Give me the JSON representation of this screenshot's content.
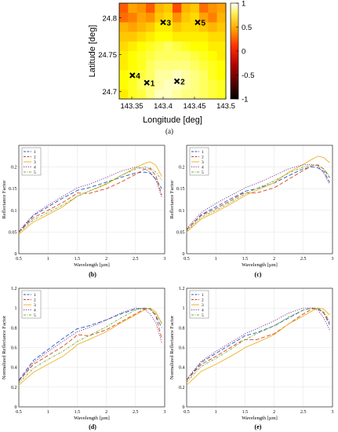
{
  "colors": {
    "series": [
      "#1f5fbf",
      "#d2461e",
      "#ecb22a",
      "#7e2f8e",
      "#77ac30"
    ],
    "heatmap_low": "#000000",
    "heatmap_mid": "#ff2a00",
    "heatmap_high": "#ffffff",
    "marker": "#000000"
  },
  "chart_data": [
    {
      "type": "heatmap",
      "panel_label": "(a)",
      "title": "",
      "xlabel": "Longitude [deg]",
      "ylabel": "Latitude [deg]",
      "xlim": [
        143.33,
        143.5
      ],
      "ylim": [
        24.69,
        24.82
      ],
      "xticks": [
        "143.35",
        "143.4",
        "143.45",
        "143.5"
      ],
      "yticks": [
        "24.7",
        "24.75",
        "24.8"
      ],
      "colorbar": {
        "range": [
          -1,
          1
        ],
        "ticks": [
          "1",
          "0.5",
          "0",
          "-0.5",
          "-1"
        ],
        "colormap": "hot"
      },
      "grid": false,
      "points": [
        {
          "label": "1",
          "lon": 143.374,
          "lat": 24.712
        },
        {
          "label": "2",
          "lon": 143.422,
          "lat": 24.714
        },
        {
          "label": "3",
          "lon": 143.4,
          "lat": 24.794
        },
        {
          "label": "4",
          "lon": 143.351,
          "lat": 24.722
        },
        {
          "label": "5",
          "lon": 143.455,
          "lat": 24.794
        }
      ],
      "values_grid_description": "",
      "values": [
        [
          0.15,
          0.35,
          0.3,
          0.15,
          0.4,
          0.45,
          0.1,
          0.4,
          0.45,
          0.2,
          0.3,
          0.35
        ],
        [
          0.2,
          0.25,
          0.35,
          0.3,
          0.45,
          0.5,
          0.3,
          0.45,
          0.5,
          0.35,
          0.25,
          0.4
        ],
        [
          0.4,
          0.35,
          0.4,
          0.45,
          0.55,
          0.55,
          0.45,
          0.5,
          0.5,
          0.45,
          0.4,
          0.45
        ],
        [
          0.45,
          0.45,
          0.5,
          0.55,
          0.6,
          0.6,
          0.55,
          0.55,
          0.55,
          0.55,
          0.5,
          0.5
        ],
        [
          0.5,
          0.55,
          0.6,
          0.65,
          0.7,
          0.75,
          0.7,
          0.65,
          0.6,
          0.6,
          0.55,
          0.55
        ],
        [
          0.55,
          0.6,
          0.65,
          0.7,
          0.75,
          0.75,
          0.75,
          0.75,
          0.7,
          0.65,
          0.6,
          0.55
        ],
        [
          0.55,
          0.6,
          0.65,
          0.75,
          0.8,
          0.8,
          0.8,
          0.8,
          0.75,
          0.7,
          0.65,
          0.6
        ],
        [
          0.6,
          0.65,
          0.7,
          0.75,
          0.85,
          0.85,
          0.9,
          0.85,
          0.8,
          0.75,
          0.65,
          0.6
        ],
        [
          0.6,
          0.65,
          0.75,
          0.8,
          0.85,
          0.9,
          0.9,
          0.85,
          0.8,
          0.75,
          0.7,
          0.65
        ],
        [
          0.55,
          0.65,
          0.7,
          0.8,
          0.9,
          0.9,
          0.85,
          0.8,
          0.8,
          0.75,
          0.7,
          0.65
        ]
      ]
    },
    {
      "type": "line",
      "panel_label": "(b)",
      "xlabel": "Wavelength [µm]",
      "ylabel": "Reflectance Factor",
      "xlim": [
        0.5,
        3.0
      ],
      "ylim": [
        0,
        0.25
      ],
      "xticks": [
        "0.5",
        "1",
        "1.5",
        "2",
        "2.5",
        "3"
      ],
      "yticks": [
        "0",
        "0.05",
        "0.1",
        "0.15",
        "0.2"
      ],
      "grid": true,
      "legend": "top-left",
      "x": [
        0.5,
        0.75,
        1.0,
        1.25,
        1.45,
        1.5,
        1.7,
        2.0,
        2.25,
        2.5,
        2.65,
        2.75,
        2.85,
        2.95
      ],
      "series": [
        {
          "name": "1",
          "values": [
            0.05,
            0.088,
            0.108,
            0.128,
            0.142,
            0.146,
            0.152,
            0.165,
            0.176,
            0.186,
            0.188,
            0.186,
            0.172,
            0.15
          ]
        },
        {
          "name": "2",
          "values": [
            0.05,
            0.083,
            0.1,
            0.118,
            0.135,
            0.14,
            0.139,
            0.15,
            0.165,
            0.183,
            0.195,
            0.196,
            0.18,
            0.135
          ]
        },
        {
          "name": "3",
          "values": [
            0.045,
            0.073,
            0.09,
            0.108,
            0.127,
            0.133,
            0.144,
            0.16,
            0.18,
            0.198,
            0.208,
            0.212,
            0.204,
            0.178
          ]
        },
        {
          "name": "4",
          "values": [
            0.052,
            0.09,
            0.112,
            0.132,
            0.148,
            0.152,
            0.16,
            0.176,
            0.19,
            0.2,
            0.197,
            0.188,
            0.17,
            0.13
          ]
        },
        {
          "name": "5",
          "values": [
            0.048,
            0.078,
            0.095,
            0.112,
            0.128,
            0.132,
            0.144,
            0.162,
            0.18,
            0.195,
            0.2,
            0.198,
            0.188,
            0.17
          ]
        }
      ]
    },
    {
      "type": "line",
      "panel_label": "(c)",
      "xlabel": "Wavelength [µm]",
      "ylabel": "Reflectance Factor",
      "xlim": [
        0.5,
        3.0
      ],
      "ylim": [
        0,
        0.25
      ],
      "xticks": [
        "0.5",
        "1",
        "1.5",
        "2",
        "2.5",
        "3"
      ],
      "yticks": [
        "0",
        "0.05",
        "0.1",
        "0.15",
        "0.2"
      ],
      "grid": true,
      "legend": "top-left",
      "x": [
        0.5,
        0.75,
        1.0,
        1.25,
        1.45,
        1.5,
        1.7,
        2.0,
        2.25,
        2.5,
        2.65,
        2.75,
        2.85,
        2.95
      ],
      "series": [
        {
          "name": "1",
          "values": [
            0.055,
            0.09,
            0.108,
            0.126,
            0.14,
            0.144,
            0.15,
            0.163,
            0.18,
            0.196,
            0.2,
            0.198,
            0.19,
            0.165
          ]
        },
        {
          "name": "2",
          "values": [
            0.055,
            0.088,
            0.104,
            0.122,
            0.138,
            0.14,
            0.14,
            0.152,
            0.172,
            0.192,
            0.203,
            0.205,
            0.195,
            0.175
          ]
        },
        {
          "name": "3",
          "values": [
            0.05,
            0.08,
            0.096,
            0.114,
            0.13,
            0.134,
            0.146,
            0.164,
            0.188,
            0.206,
            0.218,
            0.225,
            0.222,
            0.21
          ]
        },
        {
          "name": "4",
          "values": [
            0.058,
            0.095,
            0.116,
            0.134,
            0.148,
            0.152,
            0.162,
            0.18,
            0.196,
            0.205,
            0.206,
            0.202,
            0.186,
            0.16
          ]
        },
        {
          "name": "5",
          "values": [
            0.052,
            0.084,
            0.1,
            0.118,
            0.134,
            0.138,
            0.15,
            0.168,
            0.186,
            0.2,
            0.204,
            0.203,
            0.196,
            0.178
          ]
        }
      ]
    },
    {
      "type": "line",
      "panel_label": "(d)",
      "xlabel": "Wavelength [µm]",
      "ylabel": "Normalized Reflectance Factor",
      "xlim": [
        0.5,
        3.0
      ],
      "ylim": [
        0,
        1.2
      ],
      "xticks": [
        "0.5",
        "1",
        "1.5",
        "2",
        "2.5",
        "3"
      ],
      "yticks": [
        "0",
        "0.2",
        "0.4",
        "0.6",
        "0.8",
        "1",
        "1.2"
      ],
      "grid": true,
      "legend": "top-left",
      "x": [
        0.5,
        0.75,
        1.0,
        1.25,
        1.45,
        1.5,
        1.7,
        2.0,
        2.25,
        2.5,
        2.65,
        2.75,
        2.85,
        2.95
      ],
      "series": [
        {
          "name": "1",
          "values": [
            0.27,
            0.47,
            0.58,
            0.69,
            0.77,
            0.79,
            0.82,
            0.88,
            0.94,
            0.99,
            1.0,
            0.99,
            0.92,
            0.8
          ]
        },
        {
          "name": "2",
          "values": [
            0.26,
            0.43,
            0.52,
            0.61,
            0.7,
            0.73,
            0.72,
            0.78,
            0.86,
            0.94,
            0.99,
            1.0,
            0.92,
            0.69
          ]
        },
        {
          "name": "3",
          "values": [
            0.22,
            0.35,
            0.43,
            0.51,
            0.6,
            0.63,
            0.68,
            0.76,
            0.85,
            0.93,
            0.98,
            1.0,
            0.96,
            0.84
          ]
        },
        {
          "name": "4",
          "values": [
            0.26,
            0.45,
            0.56,
            0.66,
            0.74,
            0.76,
            0.8,
            0.88,
            0.95,
            1.0,
            0.99,
            0.94,
            0.85,
            0.65
          ]
        },
        {
          "name": "5",
          "values": [
            0.24,
            0.39,
            0.48,
            0.56,
            0.64,
            0.66,
            0.72,
            0.81,
            0.9,
            0.98,
            1.0,
            0.99,
            0.94,
            0.85
          ]
        }
      ]
    },
    {
      "type": "line",
      "panel_label": "(e)",
      "xlabel": "Wavelength [µm]",
      "ylabel": "Normalized Reflectance Factor",
      "xlim": [
        0.5,
        3.0
      ],
      "ylim": [
        0,
        1.2
      ],
      "xticks": [
        "0.5",
        "1",
        "1.5",
        "2",
        "2.5",
        "3"
      ],
      "yticks": [
        "0",
        "0.2",
        "0.4",
        "0.6",
        "0.8",
        "1",
        "1.2"
      ],
      "grid": true,
      "legend": "top-left",
      "x": [
        0.5,
        0.75,
        1.0,
        1.25,
        1.45,
        1.5,
        1.7,
        2.0,
        2.25,
        2.5,
        2.65,
        2.75,
        2.85,
        2.95
      ],
      "series": [
        {
          "name": "1",
          "values": [
            0.27,
            0.45,
            0.54,
            0.63,
            0.7,
            0.72,
            0.75,
            0.82,
            0.9,
            0.98,
            1.0,
            0.99,
            0.95,
            0.83
          ]
        },
        {
          "name": "2",
          "values": [
            0.27,
            0.43,
            0.51,
            0.6,
            0.67,
            0.68,
            0.68,
            0.74,
            0.84,
            0.94,
            0.99,
            1.0,
            0.95,
            0.85
          ]
        },
        {
          "name": "3",
          "values": [
            0.22,
            0.36,
            0.43,
            0.51,
            0.58,
            0.6,
            0.65,
            0.73,
            0.84,
            0.92,
            0.97,
            1.0,
            0.99,
            0.93
          ]
        },
        {
          "name": "4",
          "values": [
            0.28,
            0.46,
            0.56,
            0.65,
            0.72,
            0.74,
            0.79,
            0.87,
            0.95,
            1.0,
            1.0,
            0.98,
            0.9,
            0.78
          ]
        },
        {
          "name": "5",
          "values": [
            0.25,
            0.41,
            0.49,
            0.58,
            0.66,
            0.68,
            0.74,
            0.82,
            0.91,
            0.98,
            1.0,
            1.0,
            0.96,
            0.87
          ]
        }
      ]
    }
  ]
}
